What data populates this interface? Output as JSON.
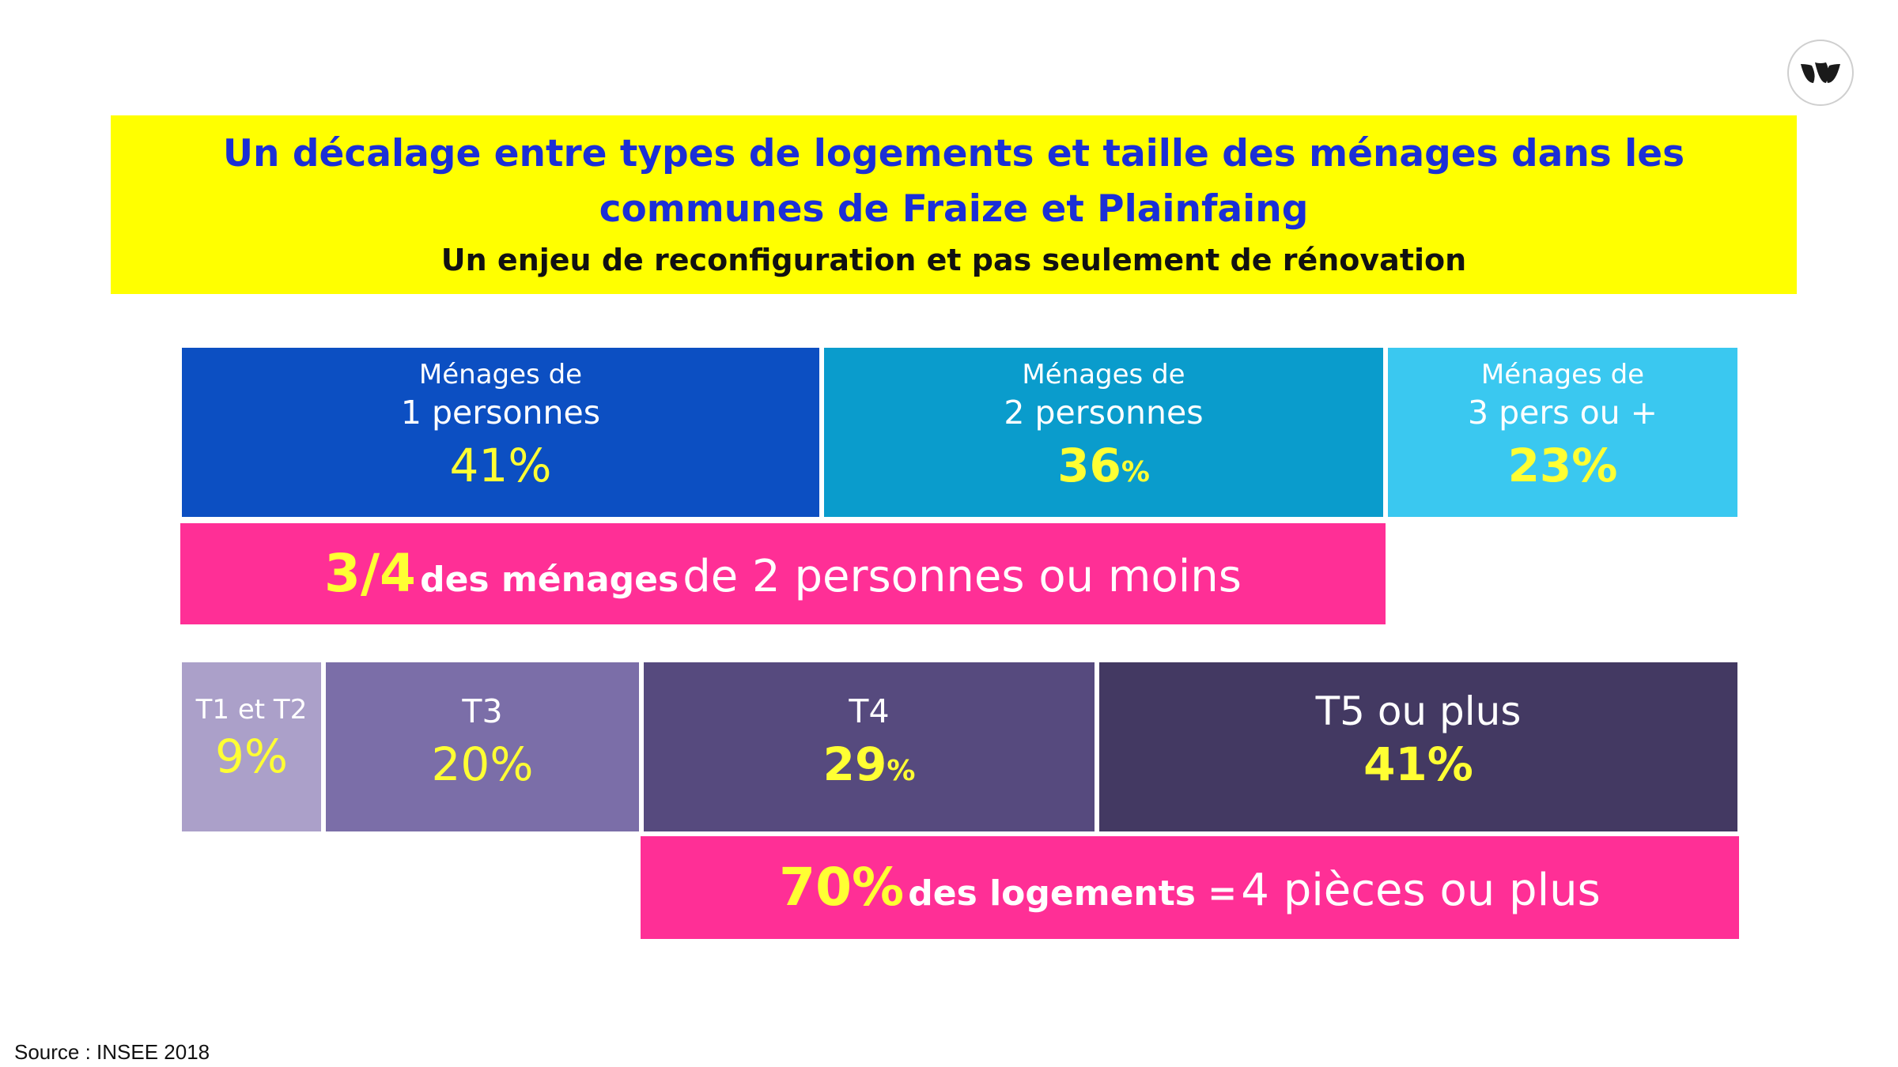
{
  "banner": {
    "title": "Un décalage entre types de logements et taille des ménages dans les communes de Fraize et Plainfaing",
    "subtitle": "Un enjeu de reconfiguration et pas seulement de rénovation"
  },
  "colors": {
    "banner_bg": "#ffff00",
    "title_text": "#1b2fd6",
    "highlight_bar": "#ff2f96",
    "value_text": "#ffff33",
    "menages": [
      "#0c4fc2",
      "#0a9ccc",
      "#3ac8f0"
    ],
    "logements": [
      "#aba0c9",
      "#7b6ea8",
      "#564a7e",
      "#433962"
    ]
  },
  "chart_data": [
    {
      "type": "bar",
      "subtype": "stacked-horizontal-100",
      "categories": [
        "Ménages de 1 personnes",
        "Ménages de 2 personnes",
        "Ménages de 3 pers ou +"
      ],
      "values": [
        41,
        36,
        23
      ],
      "unit": "%",
      "blocks": [
        {
          "line1": "Ménages de",
          "line2": "1 personnes",
          "value": "41",
          "unit": "%"
        },
        {
          "line1": "Ménages de",
          "line2": "2 personnes",
          "value": "36",
          "unit": "%"
        },
        {
          "line1": "Ménages de",
          "line2": "3 pers ou +",
          "value": "23",
          "unit": "%"
        }
      ],
      "annotation": {
        "big": "3/4",
        "mid": "des ménages",
        "rest": "de 2 personnes ou moins"
      }
    },
    {
      "type": "bar",
      "subtype": "stacked-horizontal-100",
      "categories": [
        "T1 et T2",
        "T3",
        "T4",
        "T5 ou plus"
      ],
      "values": [
        9,
        20,
        29,
        41
      ],
      "unit": "%",
      "blocks": [
        {
          "label": "T1 et T2",
          "value": "9",
          "unit": "%"
        },
        {
          "label": "T3",
          "value": "20",
          "unit": "%"
        },
        {
          "label": "T4",
          "value": "29",
          "unit": "%"
        },
        {
          "label": "T5 ou plus",
          "value": "41",
          "unit": "%"
        }
      ],
      "annotation": {
        "big": "70%",
        "mid": "des logements =",
        "rest": "4 pièces ou plus"
      }
    }
  ],
  "source": "Source : INSEE 2018",
  "logo": {
    "icon": "leaf-logo-icon"
  }
}
